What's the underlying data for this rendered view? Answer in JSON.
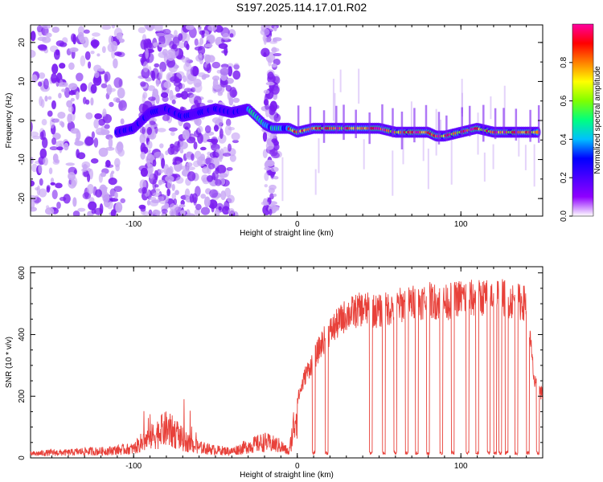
{
  "title": "S197.2025.114.17.01.R02",
  "colors": {
    "snr_line": "#e8413a",
    "colormap": [
      "#ffffff",
      "#8f00ff",
      "#4b00ff",
      "#0000ff",
      "#00bfff",
      "#00ff80",
      "#7fff00",
      "#ffff00",
      "#ff8000",
      "#ff0000",
      "#ff00a0"
    ]
  },
  "chart_data": [
    {
      "type": "heatmap",
      "xlabel": "Height of straight line (km)",
      "ylabel": "Frequency (Hz)",
      "xlim": [
        -163,
        150
      ],
      "ylim": [
        -24.5,
        24.5
      ],
      "x_ticks": [
        -100,
        0,
        100
      ],
      "y_ticks": [
        -20,
        -10,
        0,
        10,
        20
      ],
      "colorbar": {
        "label": "Normalized spectral amplitude",
        "range": [
          0,
          1
        ],
        "ticks": [
          "0.0",
          "0.2",
          "0.4",
          "0.6",
          "0.8"
        ]
      },
      "ridge": {
        "x": [
          -110,
          -100,
          -90,
          -80,
          -70,
          -60,
          -50,
          -40,
          -30,
          -25,
          -20,
          -15,
          -10,
          -5,
          0,
          10,
          20,
          30,
          40,
          50,
          60,
          70,
          80,
          85,
          90,
          100,
          110,
          120,
          130,
          140,
          148
        ],
        "freq": [
          -3,
          -2,
          2,
          3,
          1,
          2,
          3,
          2,
          3,
          1,
          -1,
          -2,
          -2,
          -2,
          -3,
          -2,
          -2,
          -2,
          -2,
          -2,
          -3,
          -3,
          -3,
          -4,
          -4,
          -3,
          -2,
          -3,
          -3,
          -3,
          -3
        ]
      }
    },
    {
      "type": "line",
      "xlabel": "Height of straight line (km)",
      "ylabel": "SNR (10 * v/v)",
      "xlim": [
        -163,
        150
      ],
      "ylim": [
        0,
        620
      ],
      "x_ticks": [
        -100,
        0,
        100
      ],
      "y_ticks": [
        0,
        200,
        400,
        600
      ],
      "envelope": {
        "x": [
          -163,
          -150,
          -140,
          -130,
          -120,
          -110,
          -100,
          -95,
          -90,
          -85,
          -80,
          -75,
          -70,
          -65,
          -60,
          -50,
          -40,
          -30,
          -20,
          -10,
          -5,
          0,
          5,
          10,
          15,
          20,
          25,
          30,
          40,
          50,
          60,
          70,
          80,
          90,
          100,
          110,
          120,
          130,
          140,
          145,
          150
        ],
        "values": [
          15,
          20,
          20,
          25,
          25,
          30,
          35,
          60,
          75,
          95,
          110,
          95,
          70,
          50,
          40,
          30,
          25,
          45,
          60,
          45,
          20,
          200,
          290,
          340,
          400,
          440,
          470,
          500,
          520,
          510,
          530,
          540,
          550,
          540,
          560,
          555,
          570,
          550,
          540,
          260,
          220
        ]
      },
      "dropouts_x": [
        10,
        18,
        45,
        53,
        60,
        67,
        73,
        80,
        88,
        95,
        104,
        110,
        117,
        121,
        124,
        128,
        134,
        141,
        147
      ]
    }
  ]
}
